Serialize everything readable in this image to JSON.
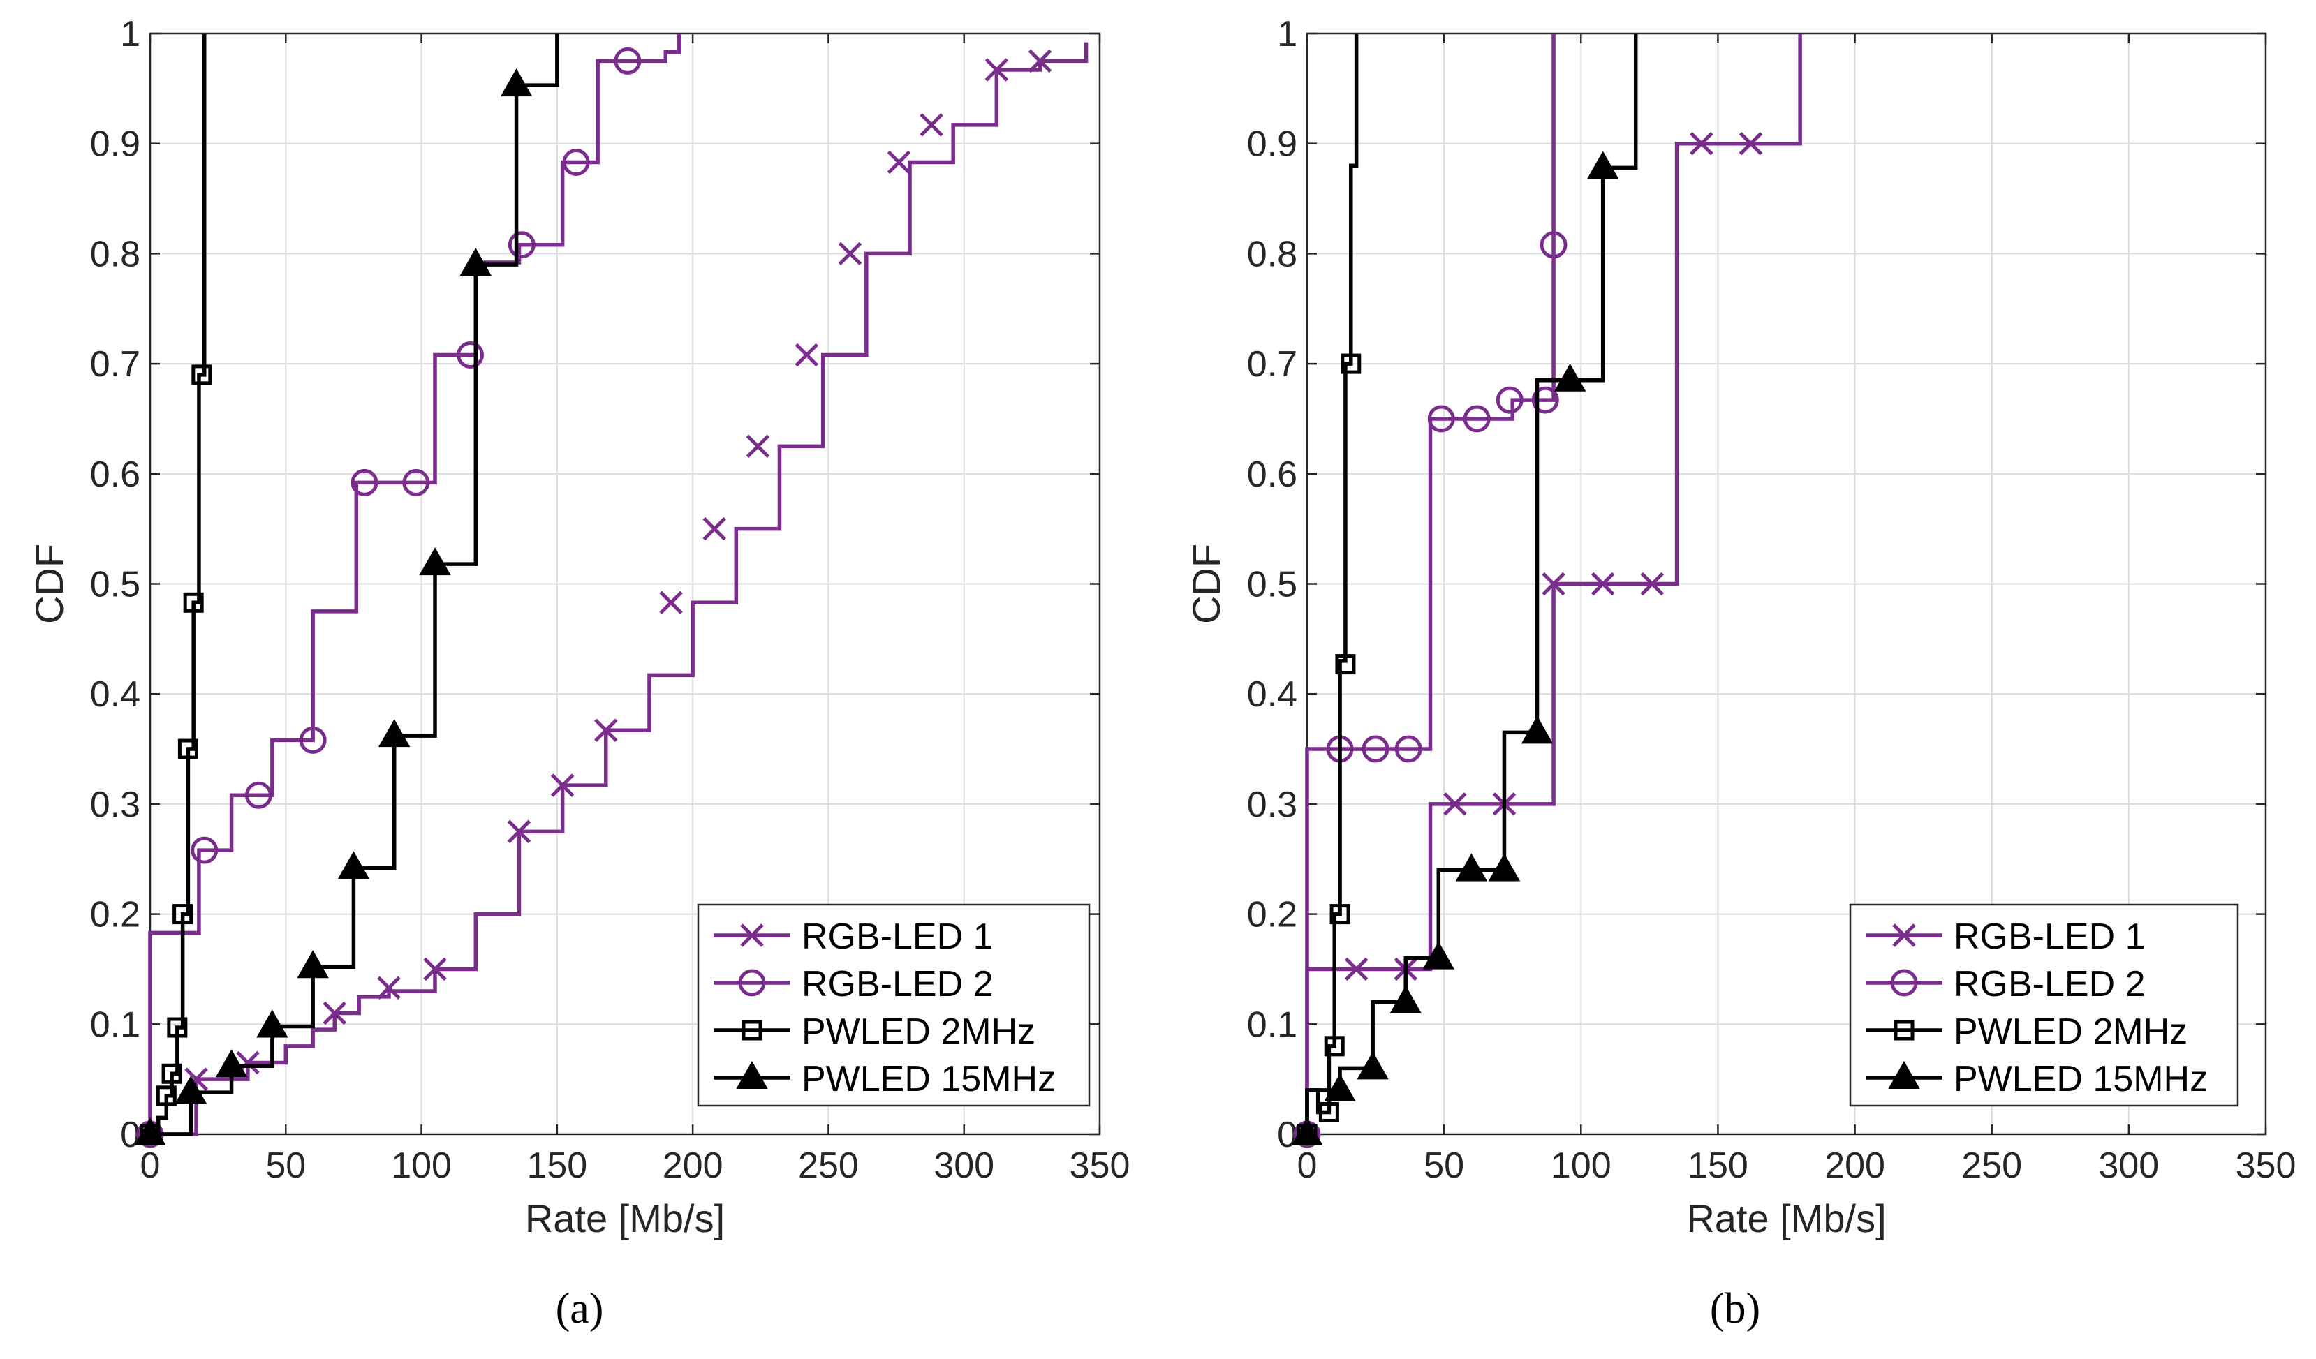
{
  "colors": {
    "purple": "#7B2D8E",
    "black": "#000000",
    "grid": "#DCDCDC"
  },
  "chart_data": [
    {
      "type": "line",
      "panel": "(a)",
      "xlabel": "Rate [Mb/s]",
      "ylabel": "CDF",
      "xlim": [
        0,
        350
      ],
      "ylim": [
        0,
        1
      ],
      "xticks": [
        "0",
        "50",
        "100",
        "150",
        "200",
        "250",
        "300",
        "350"
      ],
      "yticks": [
        "0",
        "0.1",
        "0.2",
        "0.3",
        "0.4",
        "0.5",
        "0.6",
        "0.7",
        "0.8",
        "0.9",
        "1"
      ],
      "grid": true,
      "legend_position": "bottom-right",
      "series": [
        {
          "name": "RGB-LED 1",
          "color": "#7B2D8E",
          "marker": "x",
          "x": [
            0,
            17,
            28,
            36,
            50,
            60,
            68,
            77,
            88,
            105,
            120,
            136,
            152,
            168,
            184,
            200,
            216,
            232,
            248,
            264,
            280,
            296,
            312,
            328,
            345
          ],
          "y": [
            0,
            0.05,
            0.05,
            0.065,
            0.08,
            0.095,
            0.11,
            0.125,
            0.13,
            0.15,
            0.2,
            0.275,
            0.317,
            0.367,
            0.417,
            0.483,
            0.55,
            0.625,
            0.708,
            0.8,
            0.883,
            0.917,
            0.967,
            0.975,
            0.992
          ],
          "marker_x": [
            17,
            36,
            68,
            88,
            105,
            136,
            152,
            168,
            192,
            208,
            224,
            242,
            258,
            276,
            288,
            312,
            328
          ],
          "marker_y": [
            0.05,
            0.065,
            0.11,
            0.133,
            0.15,
            0.275,
            0.317,
            0.367,
            0.483,
            0.55,
            0.625,
            0.708,
            0.8,
            0.883,
            0.917,
            0.967,
            0.975
          ]
        },
        {
          "name": "RGB-LED 2",
          "color": "#7B2D8E",
          "marker": "o",
          "x": [
            0,
            18,
            30,
            40,
            45,
            60,
            76,
            90,
            105,
            120,
            136,
            152,
            165,
            175,
            190,
            195
          ],
          "y": [
            0.183,
            0.258,
            0.308,
            0.308,
            0.358,
            0.475,
            0.592,
            0.592,
            0.708,
            0.792,
            0.808,
            0.883,
            0.975,
            0.975,
            0.983,
            1.0
          ],
          "marker_x": [
            0,
            20,
            40,
            60,
            79,
            98,
            118,
            137,
            157,
            176
          ],
          "marker_y": [
            0,
            0.258,
            0.308,
            0.358,
            0.592,
            0.592,
            0.708,
            0.808,
            0.883,
            0.975
          ]
        },
        {
          "name": "PWLED 2MHz",
          "color": "#000000",
          "marker": "s",
          "x": [
            0,
            3,
            6,
            8,
            10,
            12,
            14,
            16,
            18,
            20
          ],
          "y": [
            0,
            0.015,
            0.035,
            0.055,
            0.097,
            0.2,
            0.35,
            0.483,
            0.69,
            1.0
          ],
          "marker_x": [
            0,
            6,
            8,
            10,
            12,
            14,
            16,
            19
          ],
          "marker_y": [
            0,
            0.035,
            0.055,
            0.097,
            0.2,
            0.35,
            0.483,
            0.69
          ]
        },
        {
          "name": "PWLED 15MHz",
          "color": "#000000",
          "marker": "^",
          "x": [
            0,
            15,
            30,
            45,
            60,
            75,
            90,
            105,
            120,
            135,
            150
          ],
          "y": [
            0,
            0.038,
            0.062,
            0.098,
            0.152,
            0.242,
            0.362,
            0.518,
            0.79,
            0.953,
            1.0
          ],
          "marker_x": [
            0,
            15,
            30,
            45,
            60,
            75,
            90,
            105,
            120,
            135
          ],
          "marker_y": [
            0,
            0.038,
            0.062,
            0.098,
            0.152,
            0.242,
            0.362,
            0.518,
            0.79,
            0.953
          ]
        }
      ]
    },
    {
      "type": "line",
      "panel": "(b)",
      "xlabel": "Rate [Mb/s]",
      "ylabel": "CDF",
      "xlim": [
        0,
        350
      ],
      "ylim": [
        0,
        1
      ],
      "xticks": [
        "0",
        "50",
        "100",
        "150",
        "200",
        "250",
        "300",
        "350"
      ],
      "yticks": [
        "0",
        "0.1",
        "0.2",
        "0.3",
        "0.4",
        "0.5",
        "0.6",
        "0.7",
        "0.8",
        "0.9",
        "1"
      ],
      "grid": true,
      "legend_position": "bottom-right",
      "series": [
        {
          "name": "RGB-LED 1",
          "color": "#7B2D8E",
          "marker": "x",
          "x": [
            0,
            45,
            90,
            135,
            180
          ],
          "y": [
            0.15,
            0.3,
            0.5,
            0.9,
            1.0
          ],
          "marker_x": [
            18,
            36,
            54,
            72,
            90,
            108,
            126,
            144,
            162
          ],
          "marker_y": [
            0.15,
            0.15,
            0.3,
            0.3,
            0.5,
            0.5,
            0.5,
            0.9,
            0.9
          ]
        },
        {
          "name": "RGB-LED 2",
          "color": "#7B2D8E",
          "marker": "o",
          "x": [
            0,
            45,
            75,
            90
          ],
          "y": [
            0.35,
            0.65,
            0.667,
            1.0
          ],
          "marker_x": [
            0,
            12,
            25,
            37,
            49,
            62,
            74,
            87,
            90
          ],
          "marker_y": [
            0,
            0.35,
            0.35,
            0.35,
            0.65,
            0.65,
            0.667,
            0.667,
            0.808
          ]
        },
        {
          "name": "PWLED 2MHz",
          "color": "#000000",
          "marker": "s",
          "x": [
            0,
            4,
            8,
            10,
            12,
            14,
            16,
            18
          ],
          "y": [
            0.04,
            0.02,
            0.08,
            0.2,
            0.43,
            0.7,
            0.88,
            1.0
          ],
          "marker_x": [
            0,
            8,
            10,
            12,
            14,
            16
          ],
          "marker_y": [
            0,
            0.02,
            0.08,
            0.2,
            0.427,
            0.7
          ]
        },
        {
          "name": "PWLED 15MHz",
          "color": "#000000",
          "marker": "^",
          "x": [
            0,
            12,
            24,
            36,
            48,
            60,
            72,
            84,
            96,
            108,
            120
          ],
          "y": [
            0.04,
            0.06,
            0.12,
            0.16,
            0.24,
            0.24,
            0.365,
            0.685,
            0.685,
            0.878,
            1.0
          ],
          "marker_x": [
            0,
            12,
            24,
            36,
            48,
            60,
            72,
            84,
            96,
            108
          ],
          "marker_y": [
            0,
            0.04,
            0.06,
            0.12,
            0.16,
            0.24,
            0.24,
            0.365,
            0.685,
            0.878
          ]
        }
      ]
    }
  ]
}
